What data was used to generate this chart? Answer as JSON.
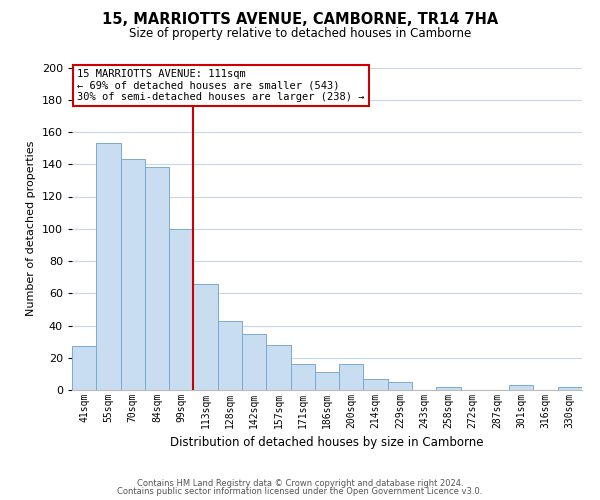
{
  "title": "15, MARRIOTTS AVENUE, CAMBORNE, TR14 7HA",
  "subtitle": "Size of property relative to detached houses in Camborne",
  "xlabel": "Distribution of detached houses by size in Camborne",
  "ylabel": "Number of detached properties",
  "bar_labels": [
    "41sqm",
    "55sqm",
    "70sqm",
    "84sqm",
    "99sqm",
    "113sqm",
    "128sqm",
    "142sqm",
    "157sqm",
    "171sqm",
    "186sqm",
    "200sqm",
    "214sqm",
    "229sqm",
    "243sqm",
    "258sqm",
    "272sqm",
    "287sqm",
    "301sqm",
    "316sqm",
    "330sqm"
  ],
  "bar_values": [
    27,
    153,
    143,
    138,
    100,
    66,
    43,
    35,
    28,
    16,
    11,
    16,
    7,
    5,
    0,
    2,
    0,
    0,
    3,
    0,
    2
  ],
  "bar_color": "#c8ddf0",
  "bar_edge_color": "#7aaad0",
  "vline_color": "#cc0000",
  "annotation_text_line1": "15 MARRIOTTS AVENUE: 111sqm",
  "annotation_text_line2": "← 69% of detached houses are smaller (543)",
  "annotation_text_line3": "30% of semi-detached houses are larger (238) →",
  "ylim": [
    0,
    200
  ],
  "yticks": [
    0,
    20,
    40,
    60,
    80,
    100,
    120,
    140,
    160,
    180,
    200
  ],
  "footer_line1": "Contains HM Land Registry data © Crown copyright and database right 2024.",
  "footer_line2": "Contains public sector information licensed under the Open Government Licence v3.0.",
  "background_color": "#ffffff",
  "grid_color": "#c8d8ec"
}
